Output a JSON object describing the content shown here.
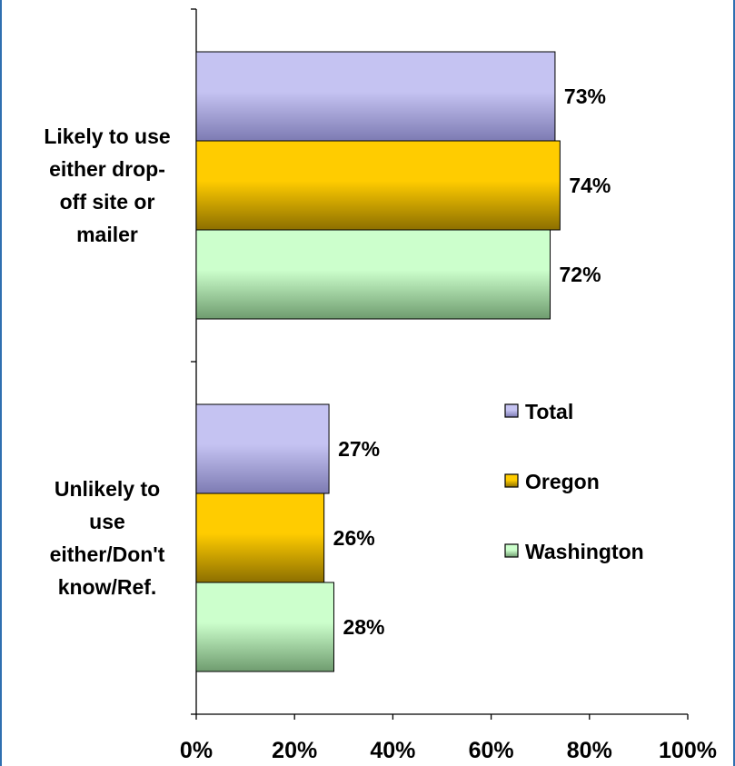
{
  "chart_data": {
    "type": "bar",
    "orientation": "horizontal",
    "categories": [
      [
        "Likely to use",
        "either drop-",
        "off site or",
        "mailer"
      ],
      [
        "Unlikely to",
        "use",
        "either/Don't",
        "know/Ref."
      ]
    ],
    "series": [
      {
        "name": "Total",
        "values": [
          73,
          27
        ],
        "labels": [
          "73%",
          "27%"
        ],
        "color": "#c5c3f2",
        "shade": "#7d7bb3"
      },
      {
        "name": "Oregon",
        "values": [
          74,
          26
        ],
        "labels": [
          "74%",
          "26%"
        ],
        "color": "#ffcc00",
        "shade": "#8c6f00"
      },
      {
        "name": "Washington",
        "values": [
          72,
          28
        ],
        "labels": [
          "72%",
          "28%"
        ],
        "color": "#ccffcc",
        "shade": "#6f9c6f"
      }
    ],
    "xlim": [
      0,
      100
    ],
    "xticks": [
      0,
      20,
      40,
      60,
      80,
      100
    ],
    "xtick_labels": [
      "0%",
      "20%",
      "40%",
      "60%",
      "80%",
      "100%"
    ],
    "legend_position": "right",
    "grid": false,
    "title": "",
    "xlabel": "",
    "ylabel": ""
  }
}
